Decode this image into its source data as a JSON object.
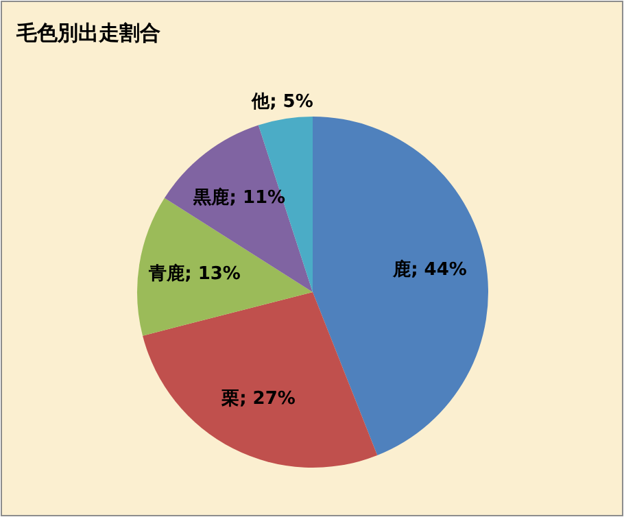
{
  "chart_data": {
    "type": "pie",
    "title": "毛色別出走割合",
    "categories": [
      "鹿",
      "栗",
      "青鹿",
      "黒鹿",
      "他"
    ],
    "values": [
      44,
      27,
      13,
      11,
      5
    ],
    "colors": [
      "#4f81bd",
      "#c0504d",
      "#9bbb59",
      "#8064a2",
      "#4bacc6"
    ],
    "value_labels": [
      "; 44%",
      "; 27%",
      "; 13%",
      "; 11%",
      "; 5%"
    ]
  }
}
